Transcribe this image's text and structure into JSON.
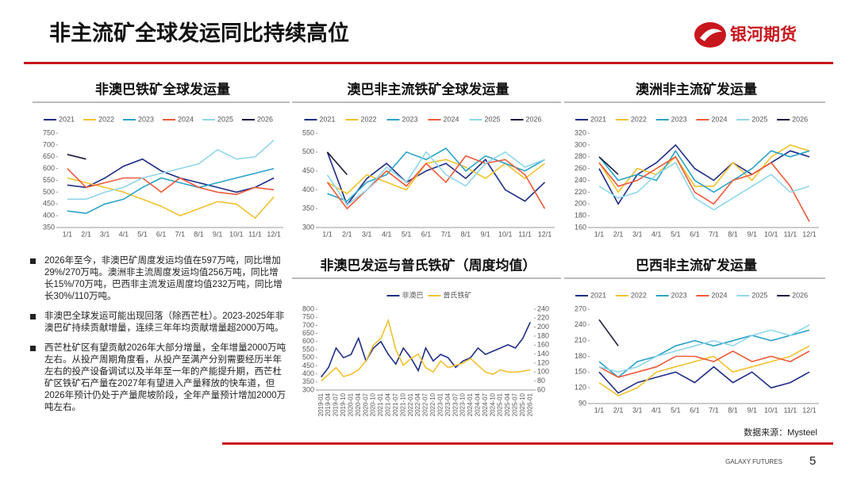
{
  "header": {
    "title": "非主流矿全球发运同比持续高位",
    "logo": "银河期货"
  },
  "chart_data": [
    {
      "type": "line",
      "title": "非澳巴铁矿全球发运量",
      "categories": [
        "1/1",
        "2/1",
        "3/1",
        "4/1",
        "5/1",
        "6/1",
        "7/1",
        "8/1",
        "9/1",
        "10/1",
        "11/1",
        "12/1"
      ],
      "ylim": [
        350,
        750
      ],
      "yticks": [
        350,
        400,
        450,
        500,
        550,
        600,
        650,
        700,
        750
      ],
      "series": [
        {
          "name": "2021",
          "color": "#1f2d86",
          "values": [
            530,
            520,
            560,
            610,
            640,
            590,
            560,
            540,
            520,
            500,
            520,
            560
          ]
        },
        {
          "name": "2022",
          "color": "#f2c12e",
          "values": [
            560,
            540,
            520,
            500,
            470,
            440,
            400,
            430,
            460,
            450,
            390,
            480
          ]
        },
        {
          "name": "2023",
          "color": "#2aa3c8",
          "values": [
            420,
            410,
            450,
            470,
            520,
            560,
            540,
            520,
            540,
            560,
            580,
            600
          ]
        },
        {
          "name": "2024",
          "color": "#ee5a3a",
          "values": [
            600,
            520,
            540,
            560,
            560,
            500,
            560,
            520,
            500,
            490,
            520,
            510
          ]
        },
        {
          "name": "2025",
          "color": "#8fd6ea",
          "values": [
            470,
            470,
            500,
            520,
            560,
            580,
            600,
            620,
            680,
            640,
            650,
            720
          ]
        },
        {
          "name": "2026",
          "color": "#1a1a3a",
          "values": [
            660,
            640,
            null,
            null,
            null,
            null,
            null,
            null,
            null,
            null,
            null,
            null
          ]
        }
      ]
    },
    {
      "type": "line",
      "title": "澳巴非主流铁矿全球发运量",
      "categories": [
        "1/1",
        "2/1",
        "3/1",
        "4/1",
        "5/1",
        "6/1",
        "7/1",
        "8/1",
        "9/1",
        "10/1",
        "11/1",
        "12/1"
      ],
      "ylim": [
        300,
        550
      ],
      "yticks": [
        300,
        350,
        400,
        450,
        500,
        550
      ],
      "series": [
        {
          "name": "2021",
          "color": "#1f2d86",
          "values": [
            500,
            360,
            430,
            470,
            420,
            450,
            470,
            430,
            480,
            400,
            370,
            420
          ]
        },
        {
          "name": "2022",
          "color": "#f2c12e",
          "values": [
            420,
            390,
            440,
            420,
            400,
            470,
            480,
            460,
            430,
            470,
            430,
            470
          ]
        },
        {
          "name": "2023",
          "color": "#2aa3c8",
          "values": [
            390,
            370,
            420,
            440,
            500,
            480,
            510,
            450,
            490,
            470,
            450,
            480
          ]
        },
        {
          "name": "2024",
          "color": "#ee5a3a",
          "values": [
            420,
            350,
            400,
            450,
            410,
            470,
            420,
            490,
            470,
            480,
            440,
            350
          ]
        },
        {
          "name": "2025",
          "color": "#8fd6ea",
          "values": [
            440,
            360,
            400,
            460,
            420,
            500,
            440,
            410,
            470,
            500,
            460,
            480
          ]
        },
        {
          "name": "2026",
          "color": "#1a1a3a",
          "values": [
            500,
            440,
            null,
            null,
            null,
            null,
            null,
            null,
            null,
            null,
            null,
            null
          ]
        }
      ]
    },
    {
      "type": "line",
      "title": "澳洲非主流矿发运量",
      "categories": [
        "1/1",
        "2/1",
        "3/1",
        "4/1",
        "5/1",
        "6/1",
        "7/1",
        "8/1",
        "9/1",
        "10/1",
        "11/1",
        "12/1"
      ],
      "ylim": [
        160,
        320
      ],
      "yticks": [
        160,
        180,
        200,
        220,
        240,
        260,
        280,
        300,
        320
      ],
      "series": [
        {
          "name": "2021",
          "color": "#1f2d86",
          "values": [
            260,
            200,
            250,
            270,
            300,
            260,
            240,
            270,
            250,
            270,
            290,
            280
          ]
        },
        {
          "name": "2022",
          "color": "#f2c12e",
          "values": [
            270,
            220,
            260,
            250,
            280,
            230,
            230,
            270,
            240,
            280,
            300,
            290
          ]
        },
        {
          "name": "2023",
          "color": "#2aa3c8",
          "values": [
            280,
            240,
            250,
            240,
            290,
            240,
            220,
            240,
            260,
            290,
            280,
            290
          ]
        },
        {
          "name": "2024",
          "color": "#ee5a3a",
          "values": [
            270,
            230,
            240,
            260,
            280,
            220,
            200,
            240,
            250,
            270,
            230,
            170
          ]
        },
        {
          "name": "2025",
          "color": "#8fd6ea",
          "values": [
            230,
            210,
            220,
            250,
            270,
            210,
            190,
            210,
            230,
            250,
            220,
            230
          ]
        },
        {
          "name": "2026",
          "color": "#1a1a3a",
          "values": [
            280,
            250,
            null,
            null,
            null,
            null,
            null,
            null,
            null,
            null,
            null,
            null
          ]
        }
      ]
    },
    {
      "type": "line",
      "title": "非澳巴发运与普氏铁矿（周度均值）",
      "x": [
        "2019-01",
        "2019-04",
        "2019-07",
        "2019-10",
        "2020-01",
        "2020-04",
        "2020-07",
        "2020-10",
        "2021-01",
        "2021-04",
        "2021-07",
        "2021-10",
        "2022-01",
        "2022-04",
        "2022-07",
        "2022-10",
        "2023-01",
        "2023-04",
        "2023-07",
        "2023-10",
        "2024-01",
        "2024-04",
        "2024-07",
        "2024-10",
        "2025-01",
        "2025-04",
        "2025-07",
        "2025-10",
        "2026-01"
      ],
      "ylim": [
        300,
        800
      ],
      "yticks": [
        300,
        350,
        400,
        450,
        500,
        550,
        600,
        650,
        700,
        750,
        800
      ],
      "y2lim": [
        60,
        240
      ],
      "y2ticks": [
        60,
        80,
        100,
        120,
        140,
        160,
        180,
        200,
        220,
        240
      ],
      "series": [
        {
          "name": "非澳巴",
          "color": "#1f2d86",
          "values": [
            380,
            440,
            560,
            500,
            520,
            620,
            480,
            560,
            600,
            520,
            460,
            560,
            500,
            420,
            560,
            480,
            520,
            500,
            440,
            480,
            500,
            560,
            520,
            540,
            560,
            580,
            560,
            620,
            720
          ]
        },
        {
          "name": "普氏铁矿",
          "color": "#f2c12e",
          "axis": "y2",
          "values": [
            80,
            95,
            110,
            90,
            95,
            105,
            125,
            160,
            175,
            215,
            150,
            115,
            130,
            140,
            110,
            100,
            125,
            110,
            115,
            120,
            130,
            115,
            100,
            95,
            105,
            100,
            100,
            102,
            105
          ]
        }
      ]
    },
    {
      "type": "line",
      "title": "巴西非主流矿发运量",
      "categories": [
        "1/1",
        "2/1",
        "3/1",
        "4/1",
        "5/1",
        "6/1",
        "7/1",
        "8/1",
        "9/1",
        "10/1",
        "11/1",
        "12/1"
      ],
      "ylim": [
        90,
        270
      ],
      "yticks": [
        90,
        120,
        150,
        180,
        210,
        240,
        270
      ],
      "series": [
        {
          "name": "2021",
          "color": "#1f2d86",
          "values": [
            150,
            110,
            130,
            140,
            150,
            130,
            160,
            130,
            150,
            120,
            130,
            150
          ]
        },
        {
          "name": "2022",
          "color": "#f2c12e",
          "values": [
            130,
            105,
            120,
            150,
            160,
            170,
            180,
            150,
            160,
            170,
            180,
            200
          ]
        },
        {
          "name": "2023",
          "color": "#2aa3c8",
          "values": [
            170,
            140,
            170,
            180,
            200,
            210,
            200,
            210,
            220,
            210,
            220,
            230
          ]
        },
        {
          "name": "2024",
          "color": "#ee5a3a",
          "values": [
            160,
            140,
            150,
            160,
            180,
            180,
            170,
            190,
            170,
            180,
            170,
            190
          ]
        },
        {
          "name": "2025",
          "color": "#8fd6ea",
          "values": [
            160,
            150,
            160,
            180,
            190,
            200,
            210,
            200,
            220,
            230,
            220,
            240
          ]
        },
        {
          "name": "2026",
          "color": "#1a1a3a",
          "values": [
            250,
            200,
            null,
            null,
            null,
            null,
            null,
            null,
            null,
            null,
            null,
            null
          ]
        }
      ]
    }
  ],
  "bullets": [
    "2026年至今，非澳巴矿周度发运均值在597万吨，同比增加29%/270万吨。澳洲非主流周度发运均值256万吨，同比增长15%/70万吨，巴西非主流发运周度均值232万吨，同比增长30%/110万吨。",
    "非澳巴全球发运可能出现回落（除西芒杜）。2023-2025年非澳巴矿持续贡献增量，连续三年年均贡献增量超2000万吨。",
    "西芒杜矿区有望贡献2026年大部分增量，全年增量2000万吨左右。从投产周期角度看，从投产至满产分别需要经历半年左右的投产设备调试以及半年至一年的产能提升期，西芒杜矿区铁矿石产量在2027年有望进入产量释放的快车道，但2026年预计仍处于产量爬坡阶段，全年产量预计增加2000万吨左右。"
  ],
  "source": "数据来源：Mysteel",
  "footer": {
    "brand": "GALAXY FUTURES",
    "page": "5"
  }
}
